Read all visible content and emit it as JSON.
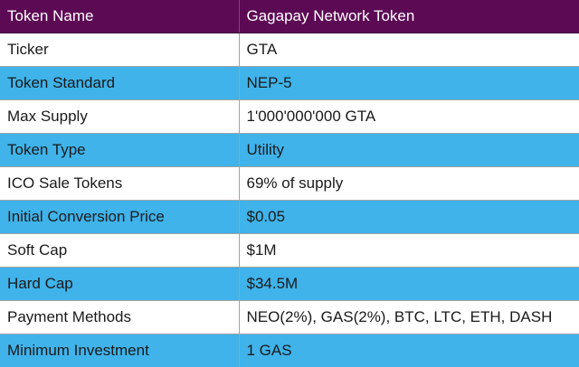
{
  "header": {
    "col1": "Token Name",
    "col2": "Gagapay Network Token"
  },
  "rows": [
    {
      "label": "Ticker",
      "value": "GTA"
    },
    {
      "label": "Token Standard",
      "value": "NEP-5"
    },
    {
      "label": "Max Supply",
      "value": "1'000'000'000 GTA"
    },
    {
      "label": "Token Type",
      "value": "Utility"
    },
    {
      "label": "ICO Sale Tokens",
      "value": "69% of supply"
    },
    {
      "label": "Initial Conversion Price",
      "value": "$0.05"
    },
    {
      "label": "Soft Cap",
      "value": "$1M"
    },
    {
      "label": "Hard Cap",
      "value": "$34.5M"
    },
    {
      "label": "Payment Methods",
      "value": "NEO(2%), GAS(2%), BTC, LTC, ETH, DASH"
    },
    {
      "label": "Minimum Investment",
      "value": "1 GAS"
    }
  ],
  "colors": {
    "header_bg": "#5d0a55",
    "stripe_bg": "#3fb3ea",
    "plain_bg": "#ffffff"
  }
}
